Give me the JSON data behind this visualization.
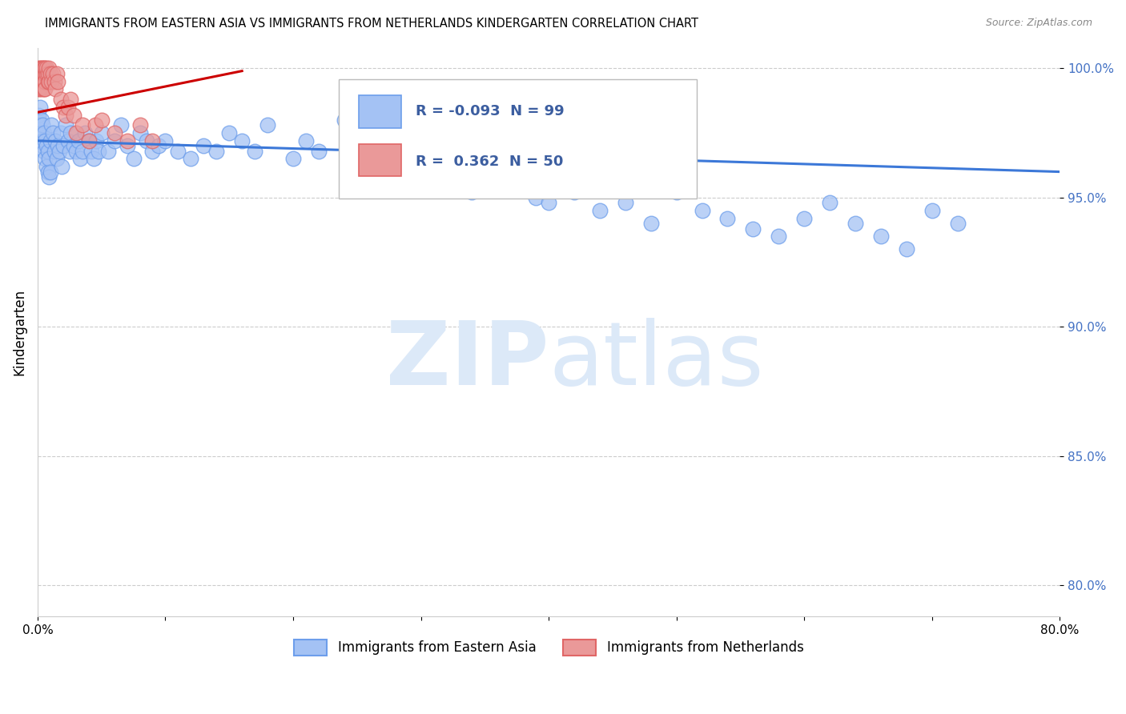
{
  "title": "IMMIGRANTS FROM EASTERN ASIA VS IMMIGRANTS FROM NETHERLANDS KINDERGARTEN CORRELATION CHART",
  "source": "Source: ZipAtlas.com",
  "ylabel": "Kindergarten",
  "legend_label_blue": "Immigrants from Eastern Asia",
  "legend_label_pink": "Immigrants from Netherlands",
  "R_blue": -0.093,
  "N_blue": 99,
  "R_pink": 0.362,
  "N_pink": 50,
  "xmin": 0.0,
  "xmax": 0.8,
  "ymin": 0.788,
  "ymax": 1.008,
  "yticks": [
    0.8,
    0.85,
    0.9,
    0.95,
    1.0
  ],
  "ytick_labels": [
    "80.0%",
    "85.0%",
    "90.0%",
    "95.0%",
    "100.0%"
  ],
  "xticks": [
    0.0,
    0.1,
    0.2,
    0.3,
    0.4,
    0.5,
    0.6,
    0.7,
    0.8
  ],
  "xtick_labels": [
    "0.0%",
    "",
    "",
    "",
    "",
    "",
    "",
    "",
    "80.0%"
  ],
  "blue_scatter_color": "#a4c2f4",
  "blue_edge_color": "#6d9eeb",
  "pink_scatter_color": "#ea9999",
  "pink_edge_color": "#e06666",
  "blue_line_color": "#3c78d8",
  "pink_line_color": "#cc0000",
  "watermark_color": "#dce9f8",
  "blue_scatter_x": [
    0.001,
    0.001,
    0.002,
    0.002,
    0.003,
    0.003,
    0.004,
    0.004,
    0.005,
    0.005,
    0.006,
    0.006,
    0.007,
    0.007,
    0.008,
    0.008,
    0.009,
    0.009,
    0.01,
    0.01,
    0.011,
    0.012,
    0.013,
    0.014,
    0.015,
    0.016,
    0.017,
    0.018,
    0.019,
    0.02,
    0.022,
    0.024,
    0.025,
    0.026,
    0.028,
    0.03,
    0.032,
    0.033,
    0.035,
    0.037,
    0.04,
    0.042,
    0.044,
    0.046,
    0.048,
    0.05,
    0.055,
    0.06,
    0.065,
    0.07,
    0.075,
    0.08,
    0.085,
    0.09,
    0.095,
    0.1,
    0.11,
    0.12,
    0.13,
    0.14,
    0.15,
    0.16,
    0.17,
    0.18,
    0.2,
    0.21,
    0.22,
    0.24,
    0.25,
    0.26,
    0.27,
    0.28,
    0.29,
    0.3,
    0.31,
    0.32,
    0.33,
    0.34,
    0.35,
    0.37,
    0.38,
    0.39,
    0.4,
    0.42,
    0.44,
    0.46,
    0.48,
    0.5,
    0.52,
    0.54,
    0.56,
    0.58,
    0.6,
    0.62,
    0.64,
    0.66,
    0.68,
    0.7,
    0.72
  ],
  "blue_scatter_y": [
    0.982,
    0.978,
    0.985,
    0.975,
    0.98,
    0.972,
    0.978,
    0.97,
    0.975,
    0.968,
    0.972,
    0.965,
    0.97,
    0.962,
    0.968,
    0.96,
    0.965,
    0.958,
    0.972,
    0.96,
    0.978,
    0.975,
    0.968,
    0.972,
    0.965,
    0.97,
    0.968,
    0.975,
    0.962,
    0.97,
    0.978,
    0.972,
    0.968,
    0.975,
    0.97,
    0.968,
    0.972,
    0.965,
    0.968,
    0.975,
    0.972,
    0.968,
    0.965,
    0.972,
    0.968,
    0.975,
    0.968,
    0.972,
    0.978,
    0.97,
    0.965,
    0.975,
    0.972,
    0.968,
    0.97,
    0.972,
    0.968,
    0.965,
    0.97,
    0.968,
    0.975,
    0.972,
    0.968,
    0.978,
    0.965,
    0.972,
    0.968,
    0.98,
    0.968,
    0.972,
    0.965,
    0.97,
    0.975,
    0.968,
    0.972,
    0.962,
    0.958,
    0.952,
    0.968,
    0.96,
    0.955,
    0.95,
    0.948,
    0.952,
    0.945,
    0.948,
    0.94,
    0.952,
    0.945,
    0.942,
    0.938,
    0.935,
    0.942,
    0.948,
    0.94,
    0.935,
    0.93,
    0.945,
    0.94
  ],
  "pink_scatter_x": [
    0.001,
    0.001,
    0.001,
    0.001,
    0.002,
    0.002,
    0.002,
    0.002,
    0.003,
    0.003,
    0.003,
    0.004,
    0.004,
    0.004,
    0.005,
    0.005,
    0.005,
    0.005,
    0.006,
    0.006,
    0.006,
    0.006,
    0.007,
    0.007,
    0.008,
    0.008,
    0.009,
    0.009,
    0.01,
    0.011,
    0.012,
    0.013,
    0.014,
    0.015,
    0.016,
    0.018,
    0.02,
    0.022,
    0.024,
    0.026,
    0.028,
    0.03,
    0.035,
    0.04,
    0.045,
    0.05,
    0.06,
    0.07,
    0.08,
    0.09
  ],
  "pink_scatter_y": [
    0.998,
    0.995,
    1.0,
    0.992,
    0.998,
    0.995,
    1.0,
    0.992,
    0.998,
    0.995,
    1.0,
    0.992,
    0.998,
    1.0,
    0.995,
    0.998,
    1.0,
    0.992,
    0.998,
    0.995,
    1.0,
    0.992,
    0.998,
    1.0,
    0.995,
    0.998,
    0.995,
    1.0,
    0.998,
    0.995,
    0.998,
    0.995,
    0.992,
    0.998,
    0.995,
    0.988,
    0.985,
    0.982,
    0.985,
    0.988,
    0.982,
    0.975,
    0.978,
    0.972,
    0.978,
    0.98,
    0.975,
    0.972,
    0.978,
    0.972
  ],
  "blue_trendline_x": [
    0.0,
    0.8
  ],
  "blue_trendline_y": [
    0.972,
    0.96
  ],
  "pink_trendline_x": [
    0.0,
    0.16
  ],
  "pink_trendline_y": [
    0.983,
    0.999
  ]
}
